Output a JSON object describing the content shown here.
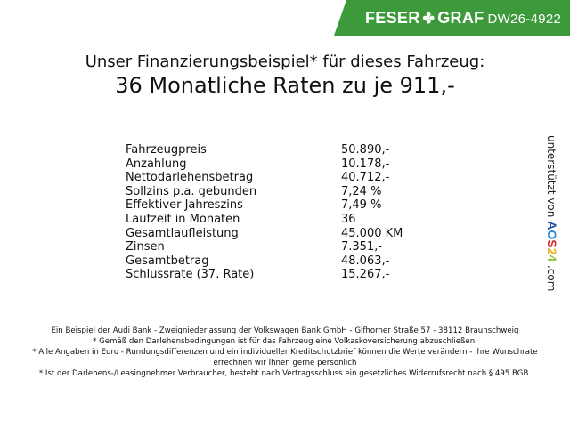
{
  "header": {
    "brand_left": "FESER",
    "brand_right": "GRAF",
    "vehicle_code": "DW26-4922",
    "brand_color": "#3d9a3b",
    "logo_icon": "clover-icon"
  },
  "title": {
    "line1": "Unser Finanzierungsbeispiel* für dieses Fahrzeug:",
    "line2": "36 Monatliche Raten zu je 911,-"
  },
  "rows": [
    {
      "label": "Fahrzeugpreis",
      "value": "50.890,-"
    },
    {
      "label": "Anzahlung",
      "value": "10.178,-"
    },
    {
      "label": "Nettodarlehensbetrag",
      "value": "40.712,-"
    },
    {
      "label": "Sollzins p.a. gebunden",
      "value": "7,24 %"
    },
    {
      "label": "Effektiver Jahreszins",
      "value": "7,49 %"
    },
    {
      "label": "Laufzeit in Monaten",
      "value": "36"
    },
    {
      "label": "Gesamtlaufleistung",
      "value": "45.000 KM"
    },
    {
      "label": "Zinsen",
      "value": "7.351,-"
    },
    {
      "label": "Gesamtbetrag",
      "value": "48.063,-"
    },
    {
      "label": "Schlussrate (37. Rate)",
      "value": "15.267,-"
    }
  ],
  "side": {
    "prefix": "unterstützt von",
    "logo": "AOS24",
    "suffix": ".com"
  },
  "footer": [
    "Ein Beispiel der Audi Bank - Zweigniederlassung der Volkswagen Bank GmbH - Gifhorner Straße 57 - 38112 Braunschweig",
    "* Gemäß den Darlehensbedingungen ist für das Fahrzeug eine Volkaskoversicherung abzuschließen.",
    "* Alle Angaben in Euro - Rundungsdifferenzen und ein individueller Kreditschutzbrief können die Werte verändern - Ihre Wunschrate errechnen wir Ihnen gerne persönlich",
    "* Ist der Darlehens-/Leasingnehmer Verbraucher, besteht nach Vertragsschluss ein gesetzliches Widerrufsrecht nach § 495 BGB."
  ]
}
